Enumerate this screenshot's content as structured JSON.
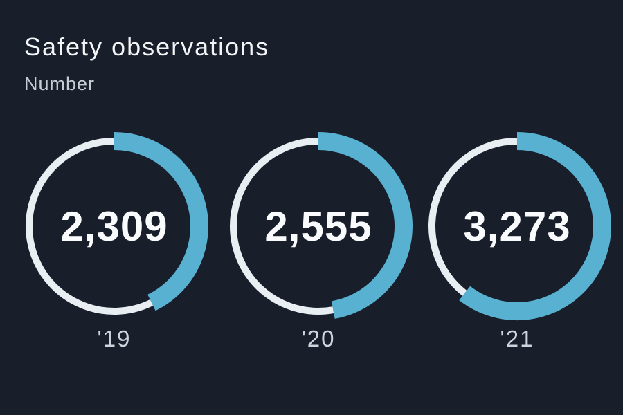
{
  "colors": {
    "background": "#181f2b",
    "accent_blue": "#59b1d1",
    "ring_track": "#e9eef3",
    "number_text": "#fafbfc",
    "title_text": "#f3f5f7",
    "subtitle_text": "#c6ccd4",
    "year_label_text": "#ced4db"
  },
  "header": {
    "title": "Safety observations",
    "subtitle": "Number"
  },
  "chart_data": {
    "type": "donut-progress",
    "title": "Safety observations",
    "unit_label": "Number",
    "categories": [
      "'19",
      "'20",
      "'21"
    ],
    "values": [
      2309,
      2555,
      3273
    ],
    "arc_start": "top",
    "direction": "clockwise",
    "rings": [
      {
        "year": "'19",
        "value": 2309,
        "display": "2,309",
        "arc_degrees": 154
      },
      {
        "year": "'20",
        "value": 2555,
        "display": "2,555",
        "arc_degrees": 170
      },
      {
        "year": "'21",
        "value": 3273,
        "display": "3,273",
        "arc_degrees": 218
      }
    ]
  }
}
